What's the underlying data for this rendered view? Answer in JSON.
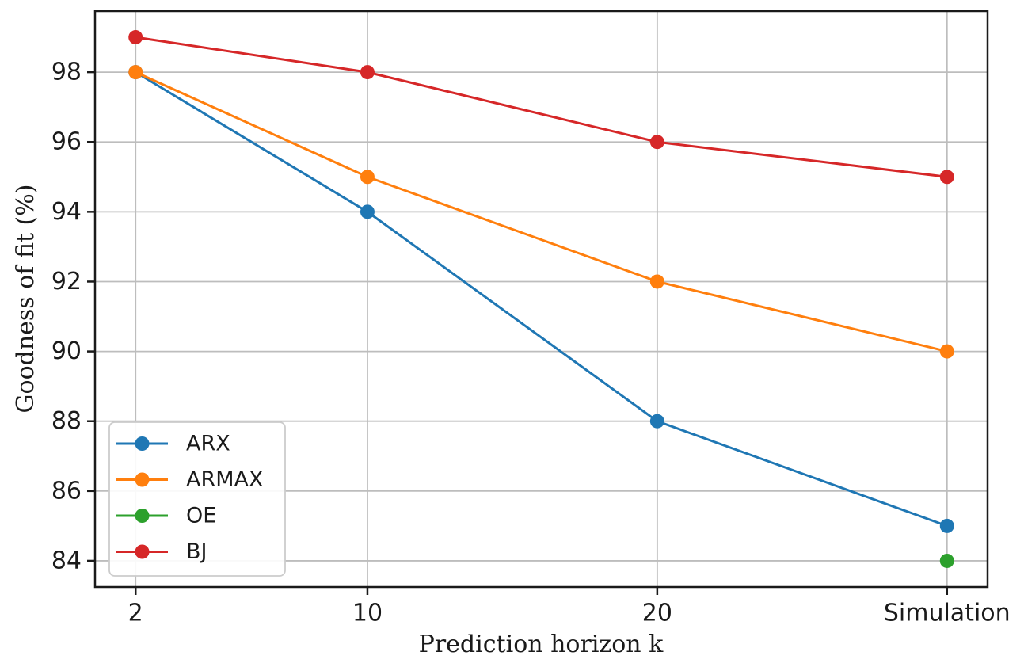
{
  "figure": {
    "background": "#ffffff"
  },
  "chart_data": {
    "type": "line",
    "title": "",
    "xlabel": "Prediction horizon k",
    "ylabel": "Goodness of fit (%)",
    "x_tick_labels": [
      "2",
      "10",
      "20",
      "Simulation"
    ],
    "x_positions": [
      2,
      10,
      20,
      30
    ],
    "xlim": [
      0.6,
      31.4
    ],
    "ylim": [
      83.25,
      99.75
    ],
    "y_ticks": [
      84,
      86,
      88,
      90,
      92,
      94,
      96,
      98
    ],
    "grid": true,
    "legend_position": "lower-left",
    "series": [
      {
        "name": "ARX",
        "color": "#1f77b4",
        "values": [
          98,
          94,
          88,
          85
        ]
      },
      {
        "name": "ARMAX",
        "color": "#ff7f0e",
        "values": [
          98,
          95,
          92,
          90
        ]
      },
      {
        "name": "OE",
        "color": "#2ca02c",
        "values": [
          null,
          null,
          null,
          84
        ]
      },
      {
        "name": "BJ",
        "color": "#d62728",
        "values": [
          99,
          98,
          96,
          95
        ]
      }
    ],
    "style": {
      "grid_color": "#bdbdbd",
      "spine_color": "#1a1a1a",
      "tick_color": "#1a1a1a",
      "legend_border_color": "#cccccc",
      "legend_background": "#ffffff"
    }
  }
}
